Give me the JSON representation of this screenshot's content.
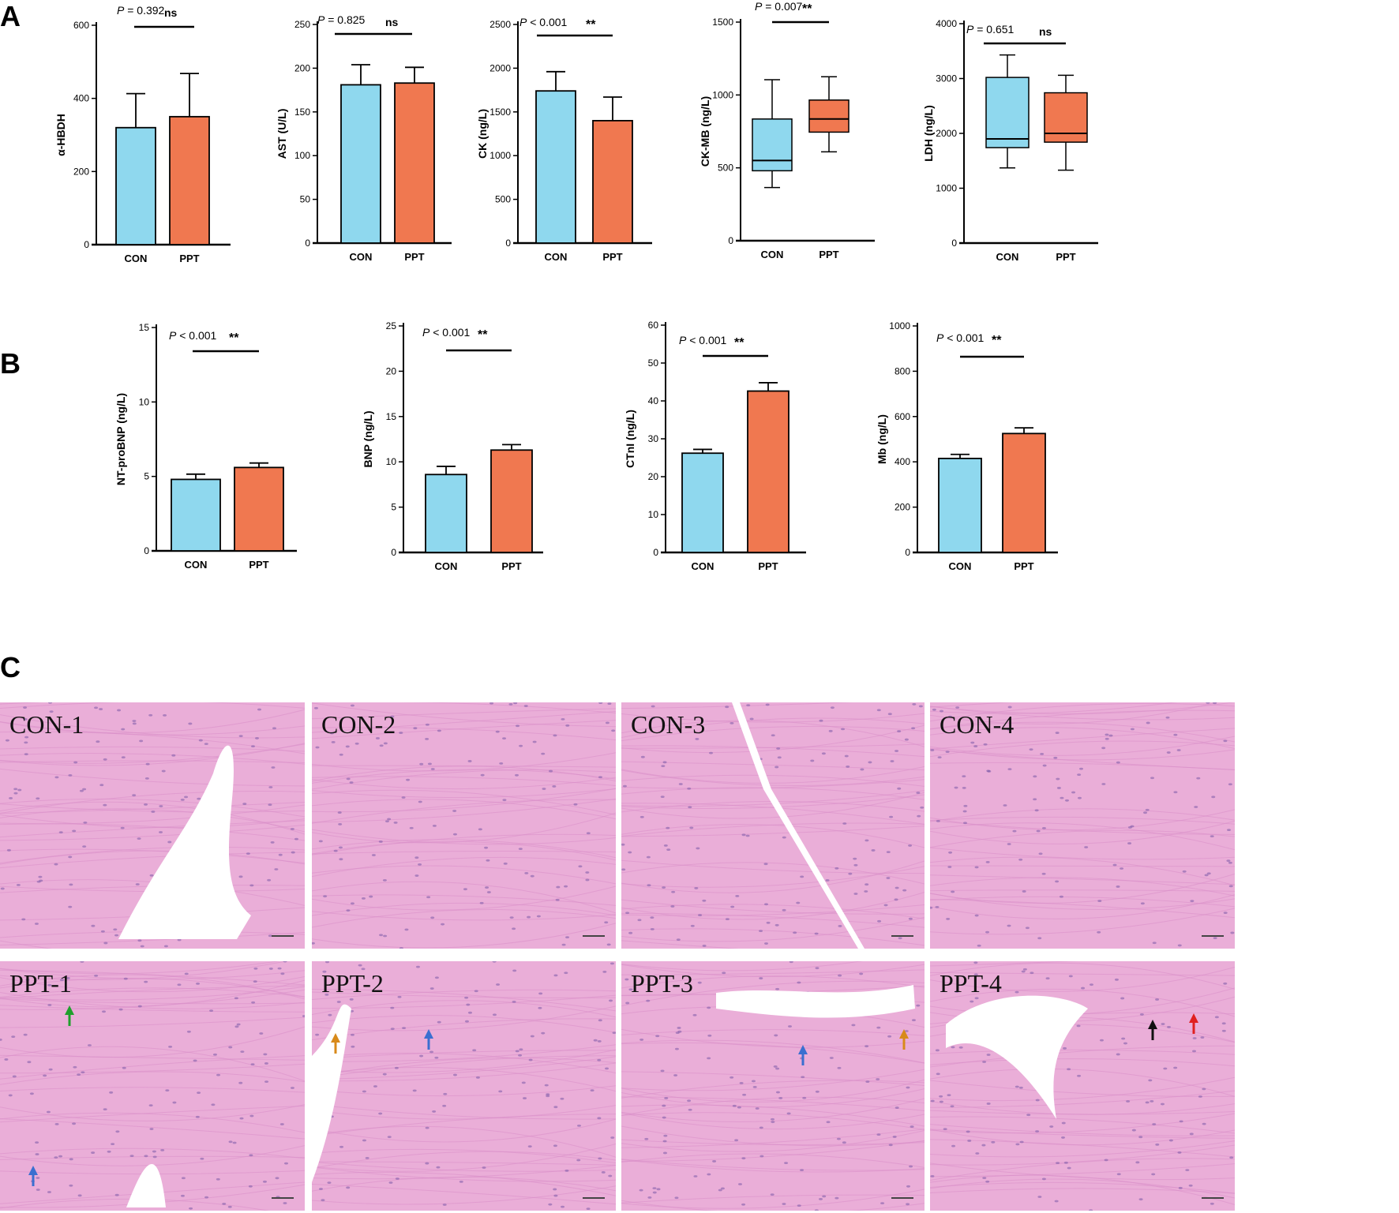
{
  "panel_letters": {
    "a": "A",
    "b": "B",
    "c": "C"
  },
  "colors": {
    "con": "#8fd8ee",
    "ppt": "#f07850",
    "axis": "#000000",
    "tissue": "#eaaed8",
    "tissue_dark": "#d98ec9"
  },
  "chart_data": [
    {
      "panel": "A",
      "type": "bar",
      "ylabel": "α-HBDH",
      "categories": [
        "CON",
        "PPT"
      ],
      "yticks": [
        0,
        200,
        400,
        600
      ],
      "ylim": [
        0,
        600
      ],
      "values": [
        320,
        350
      ],
      "errors": [
        93,
        118
      ],
      "p_value": {
        "italic": "P",
        "rest": " = 0.392"
      },
      "significance": "ns"
    },
    {
      "panel": "A",
      "type": "bar",
      "ylabel": "AST (U/L)",
      "categories": [
        "CON",
        "PPT"
      ],
      "yticks": [
        0,
        50,
        100,
        150,
        200,
        250
      ],
      "ylim": [
        0,
        250
      ],
      "values": [
        181,
        183
      ],
      "errors": [
        23,
        18
      ],
      "p_value": {
        "italic": "P",
        "rest": " = 0.825"
      },
      "significance": "ns"
    },
    {
      "panel": "A",
      "type": "bar",
      "ylabel": "CK (ng/L)",
      "categories": [
        "CON",
        "PPT"
      ],
      "yticks": [
        0,
        500,
        1000,
        1500,
        2000,
        2500
      ],
      "ylim": [
        0,
        2500
      ],
      "values": [
        1740,
        1400
      ],
      "errors": [
        220,
        270
      ],
      "p_value": {
        "italic": "P",
        "rest": " < 0.001"
      },
      "significance": "**"
    },
    {
      "panel": "A",
      "type": "box",
      "ylabel": "CK-MB (ng/L)",
      "categories": [
        "CON",
        "PPT"
      ],
      "yticks": [
        0,
        500,
        1000,
        1500
      ],
      "ylim": [
        0,
        1500
      ],
      "boxes": [
        {
          "min": 365,
          "q1": 480,
          "median": 550,
          "q3": 835,
          "max": 1105
        },
        {
          "min": 610,
          "q1": 745,
          "median": 835,
          "q3": 965,
          "max": 1125
        }
      ],
      "p_value": {
        "italic": "P",
        "rest": " = 0.007"
      },
      "significance": "**"
    },
    {
      "panel": "A",
      "type": "box",
      "ylabel": "LDH (ng/L)",
      "categories": [
        "CON",
        "PPT"
      ],
      "yticks": [
        0,
        1000,
        2000,
        3000,
        4000
      ],
      "ylim": [
        0,
        4000
      ],
      "boxes": [
        {
          "min": 1370,
          "q1": 1740,
          "median": 1900,
          "q3": 3020,
          "max": 3430
        },
        {
          "min": 1330,
          "q1": 1840,
          "median": 2000,
          "q3": 2740,
          "max": 3060
        }
      ],
      "p_value": {
        "italic": "P",
        "rest": " = 0.651"
      },
      "significance": "ns"
    },
    {
      "panel": "B",
      "type": "bar",
      "ylabel": "NT-proBNP (ng/L)",
      "categories": [
        "CON",
        "PPT"
      ],
      "yticks": [
        0,
        5,
        10,
        15
      ],
      "ylim": [
        0,
        15
      ],
      "values": [
        4.8,
        5.6
      ],
      "errors": [
        0.35,
        0.3
      ],
      "p_value": {
        "italic": "P",
        "rest": " < 0.001"
      },
      "significance": "**"
    },
    {
      "panel": "B",
      "type": "bar",
      "ylabel": "BNP (ng/L)",
      "categories": [
        "CON",
        "PPT"
      ],
      "yticks": [
        0,
        5,
        10,
        15,
        20,
        25
      ],
      "ylim": [
        0,
        25
      ],
      "values": [
        8.6,
        11.3
      ],
      "errors": [
        0.9,
        0.6
      ],
      "p_value": {
        "italic": "P",
        "rest": " < 0.001"
      },
      "significance": "**"
    },
    {
      "panel": "B",
      "type": "bar",
      "ylabel": "CTnI (ng/L)",
      "categories": [
        "CON",
        "PPT"
      ],
      "yticks": [
        0,
        10,
        20,
        30,
        40,
        50,
        60
      ],
      "ylim": [
        0,
        60
      ],
      "values": [
        26.2,
        42.6
      ],
      "errors": [
        1.0,
        2.2
      ],
      "p_value": {
        "italic": "P",
        "rest": " < 0.001"
      },
      "significance": "**"
    },
    {
      "panel": "B",
      "type": "bar",
      "ylabel": "Mb (ng/L)",
      "categories": [
        "CON",
        "PPT"
      ],
      "yticks": [
        0,
        200,
        400,
        600,
        800,
        1000
      ],
      "ylim": [
        0,
        1000
      ],
      "values": [
        415,
        525
      ],
      "errors": [
        18,
        25
      ],
      "p_value": {
        "italic": "P",
        "rest": " < 0.001"
      },
      "significance": "**"
    }
  ],
  "histology": {
    "con_labels": [
      "CON-1",
      "CON-2",
      "CON-3",
      "CON-4"
    ],
    "ppt_labels": [
      "PPT-1",
      "PPT-2",
      "PPT-3",
      "PPT-4"
    ],
    "arrows": [
      [
        {
          "color": "#1fa02c"
        },
        {
          "color": "#3a6fd0"
        },
        {
          "color": "#d88a1a"
        }
      ],
      [
        {
          "color": "#d88a1a"
        },
        {
          "color": "#3a6fd0"
        }
      ],
      [
        {
          "color": "#3a6fd0"
        },
        {
          "color": "#d88a1a"
        },
        {
          "color": "#d88a1a"
        }
      ],
      [
        {
          "color": "#111111"
        },
        {
          "color": "#e02020"
        }
      ]
    ]
  }
}
